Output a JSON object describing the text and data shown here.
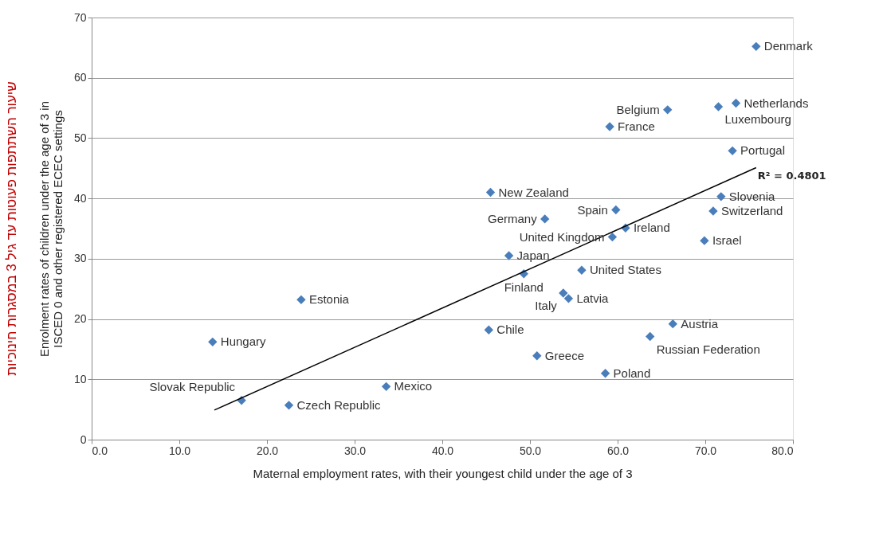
{
  "chart_data": {
    "type": "scatter",
    "xlabel": "Maternal employment rates, with their youngest child under the age of 3",
    "ylabel": "Enrolment rates of children under the age of 3 in\nISCED 0 and other registered ECEC settings",
    "xlim": [
      0,
      80
    ],
    "ylim": [
      0,
      70
    ],
    "xticks": [
      {
        "value": 0,
        "label": "0.0"
      },
      {
        "value": 10,
        "label": "10.0"
      },
      {
        "value": 20,
        "label": "20.0"
      },
      {
        "value": 30,
        "label": "30.0"
      },
      {
        "value": 40,
        "label": "40.0"
      },
      {
        "value": 50,
        "label": "50.0"
      },
      {
        "value": 60,
        "label": "60.0"
      },
      {
        "value": 70,
        "label": "70.0"
      },
      {
        "value": 80,
        "label": "80.0"
      }
    ],
    "yticks": [
      0,
      10,
      20,
      30,
      40,
      50,
      60,
      70
    ],
    "grid": "y",
    "marker": "diamond",
    "legend": false,
    "series": [
      {
        "type": "scatter",
        "color": "#4a7ebb",
        "x": [
          75.8,
          73.5,
          71.5,
          65.7,
          59.1,
          73.1,
          71.8,
          70.9,
          69.9,
          45.5,
          59.8,
          51.7,
          60.9,
          59.4,
          47.6,
          49.3,
          55.9,
          53.8,
          54.4,
          23.9,
          45.3,
          66.3,
          63.7,
          13.8,
          50.8,
          58.6,
          33.6,
          17.1,
          22.5
        ],
        "values": [
          65.2,
          55.8,
          55.2,
          54.7,
          51.9,
          47.9,
          40.3,
          37.9,
          33.0,
          41.0,
          38.1,
          36.6,
          35.1,
          33.6,
          30.5,
          27.5,
          28.1,
          24.3,
          23.4,
          23.2,
          18.2,
          19.2,
          17.1,
          16.2,
          13.9,
          11.0,
          8.8,
          6.5,
          5.7
        ]
      },
      {
        "type": "line",
        "marker": "none",
        "line_style": "solid",
        "color": "#000000",
        "x": [
          14.0,
          75.8
        ],
        "values": [
          4.9,
          45.1
        ]
      }
    ],
    "annotations": [
      "שיעור השתתפות פעוטות עד גיל 3 במסגרות חינוכיות",
      "R² = 0.4801",
      {
        "text": "Denmark",
        "x": 75.8,
        "y": 65.2
      },
      {
        "text": "Netherlands",
        "x": 73.5,
        "y": 55.8
      },
      {
        "text": "Luxembourg",
        "x": 71.5,
        "y": 55.2
      },
      {
        "text": "Belgium",
        "x": 65.7,
        "y": 54.7
      },
      {
        "text": "France",
        "x": 59.1,
        "y": 51.9
      },
      {
        "text": "Portugal",
        "x": 73.1,
        "y": 47.9
      },
      {
        "text": "Slovenia",
        "x": 71.8,
        "y": 40.3
      },
      {
        "text": "Switzerland",
        "x": 70.9,
        "y": 37.9
      },
      {
        "text": "Israel",
        "x": 69.9,
        "y": 33.0
      },
      {
        "text": "New Zealand",
        "x": 45.5,
        "y": 41.0
      },
      {
        "text": "Spain",
        "x": 59.8,
        "y": 38.1
      },
      {
        "text": "Germany",
        "x": 51.7,
        "y": 36.6
      },
      {
        "text": "Ireland",
        "x": 60.9,
        "y": 35.1
      },
      {
        "text": "United Kingdom",
        "x": 59.4,
        "y": 33.6
      },
      {
        "text": "Japan",
        "x": 47.6,
        "y": 30.5
      },
      {
        "text": "Finland",
        "x": 49.3,
        "y": 27.5
      },
      {
        "text": "United States",
        "x": 55.9,
        "y": 28.1
      },
      {
        "text": "Italy",
        "x": 53.8,
        "y": 24.3
      },
      {
        "text": "Latvia",
        "x": 54.4,
        "y": 23.4
      },
      {
        "text": "Estonia",
        "x": 23.9,
        "y": 23.2
      },
      {
        "text": "Chile",
        "x": 45.3,
        "y": 18.2
      },
      {
        "text": "Austria",
        "x": 66.3,
        "y": 19.2
      },
      {
        "text": "Russian Federation",
        "x": 63.7,
        "y": 17.1
      },
      {
        "text": "Hungary",
        "x": 13.8,
        "y": 16.2
      },
      {
        "text": "Greece",
        "x": 50.8,
        "y": 13.9
      },
      {
        "text": "Poland",
        "x": 58.6,
        "y": 11.0
      },
      {
        "text": "Mexico",
        "x": 33.6,
        "y": 8.8
      },
      {
        "text": "Slovak Republic",
        "x": 17.1,
        "y": 6.5
      },
      {
        "text": "Czech Republic",
        "x": 22.5,
        "y": 5.7
      }
    ]
  }
}
